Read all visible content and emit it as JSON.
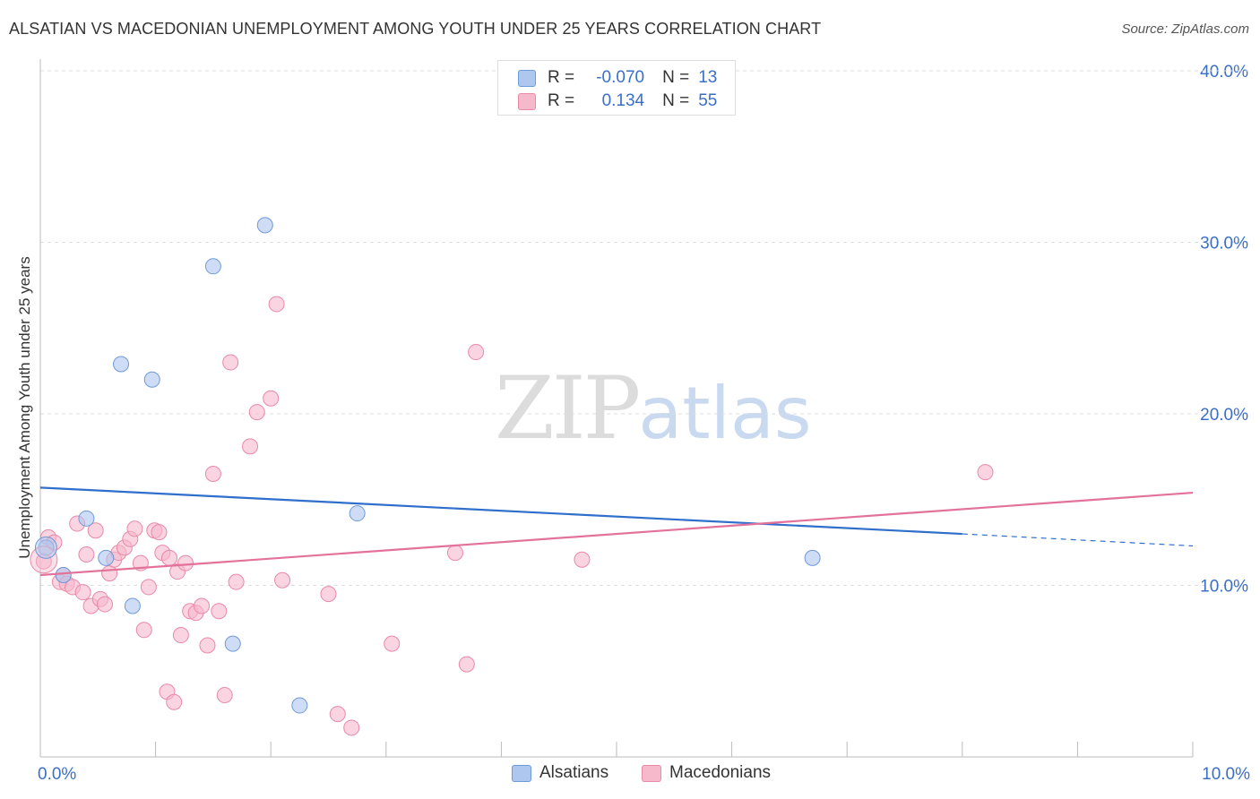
{
  "title": "ALSATIAN VS MACEDONIAN UNEMPLOYMENT AMONG YOUTH UNDER 25 YEARS CORRELATION CHART",
  "source": "Source: ZipAtlas.com",
  "watermark": {
    "zip": "ZIP",
    "atlas": "atlas"
  },
  "stat_legend": {
    "rows": [
      {
        "r_label": "R =",
        "r_value": "-0.070",
        "n_label": "N =",
        "n_value": "13",
        "color": "#aec7ef"
      },
      {
        "r_label": "R =",
        "r_value": "0.134",
        "n_label": "N =",
        "n_value": "55",
        "color": "#f6b8cb"
      }
    ]
  },
  "bottom_legend": [
    {
      "label": "Alsatians",
      "color": "#aec7ef"
    },
    {
      "label": "Macedonians",
      "color": "#f6b8cb"
    }
  ],
  "colors": {
    "alsatian_fill": "#aec7ef",
    "alsatian_stroke": "#6f9ad8",
    "alsatian_line": "#2f6fcb",
    "macedonian_fill": "#f6b8cb",
    "macedonian_stroke": "#e88aa8",
    "macedonian_line": "#e2729a",
    "tick_label": "#3a6fc9",
    "grid": "#dddddd"
  },
  "chart_data": {
    "type": "scatter",
    "title": "ALSATIAN VS MACEDONIAN UNEMPLOYMENT AMONG YOUTH UNDER 25 YEARS CORRELATION CHART",
    "xlabel": "",
    "ylabel": "Unemployment Among Youth under 25 years",
    "xlim": [
      0,
      10
    ],
    "ylim": [
      0,
      40
    ],
    "x_ticks": [
      0,
      10
    ],
    "x_tick_labels": [
      "0.0%",
      "10.0%"
    ],
    "y_ticks": [
      10,
      20,
      30,
      40
    ],
    "y_tick_labels": [
      "10.0%",
      "20.0%",
      "30.0%",
      "40.0%"
    ],
    "grid": true,
    "legend_position": "bottom-center",
    "series": [
      {
        "name": "Alsatians",
        "r": -0.07,
        "n": 13,
        "points": [
          [
            0.05,
            12.2
          ],
          [
            0.2,
            10.6
          ],
          [
            0.4,
            13.9
          ],
          [
            0.57,
            11.6
          ],
          [
            0.7,
            22.9
          ],
          [
            0.8,
            8.8
          ],
          [
            0.97,
            22.0
          ],
          [
            1.5,
            28.6
          ],
          [
            1.67,
            6.6
          ],
          [
            1.95,
            31.0
          ],
          [
            2.25,
            3.0
          ],
          [
            2.75,
            14.2
          ],
          [
            6.7,
            11.6
          ]
        ],
        "trend": {
          "x": [
            0.0,
            8.0
          ],
          "y": [
            15.7,
            13.0
          ]
        },
        "trend_dashed": {
          "x": [
            8.0,
            10.0
          ],
          "y": [
            13.0,
            12.3
          ]
        }
      },
      {
        "name": "Macedonians",
        "r": 0.134,
        "n": 55,
        "points": [
          [
            0.03,
            11.4
          ],
          [
            0.07,
            12.8
          ],
          [
            0.12,
            12.5
          ],
          [
            0.17,
            10.2
          ],
          [
            0.2,
            10.6
          ],
          [
            0.23,
            10.1
          ],
          [
            0.28,
            9.9
          ],
          [
            0.32,
            13.6
          ],
          [
            0.37,
            9.6
          ],
          [
            0.4,
            11.8
          ],
          [
            0.44,
            8.8
          ],
          [
            0.48,
            13.2
          ],
          [
            0.52,
            9.2
          ],
          [
            0.56,
            8.9
          ],
          [
            0.6,
            10.7
          ],
          [
            0.64,
            11.5
          ],
          [
            0.68,
            11.9
          ],
          [
            0.73,
            12.2
          ],
          [
            0.78,
            12.7
          ],
          [
            0.82,
            13.3
          ],
          [
            0.87,
            11.3
          ],
          [
            0.9,
            7.4
          ],
          [
            0.94,
            9.9
          ],
          [
            0.99,
            13.2
          ],
          [
            1.03,
            13.1
          ],
          [
            1.06,
            11.9
          ],
          [
            1.1,
            3.8
          ],
          [
            1.12,
            11.6
          ],
          [
            1.16,
            3.2
          ],
          [
            1.19,
            10.8
          ],
          [
            1.22,
            7.1
          ],
          [
            1.26,
            11.3
          ],
          [
            1.3,
            8.5
          ],
          [
            1.35,
            8.4
          ],
          [
            1.4,
            8.8
          ],
          [
            1.45,
            6.5
          ],
          [
            1.5,
            16.5
          ],
          [
            1.55,
            8.5
          ],
          [
            1.6,
            3.6
          ],
          [
            1.65,
            23.0
          ],
          [
            1.7,
            10.2
          ],
          [
            1.82,
            18.1
          ],
          [
            1.88,
            20.1
          ],
          [
            2.0,
            20.9
          ],
          [
            2.05,
            26.4
          ],
          [
            2.1,
            10.3
          ],
          [
            2.5,
            9.5
          ],
          [
            2.58,
            2.5
          ],
          [
            2.7,
            1.7
          ],
          [
            3.05,
            6.6
          ],
          [
            3.6,
            11.9
          ],
          [
            3.7,
            5.4
          ],
          [
            3.78,
            23.6
          ],
          [
            4.7,
            11.5
          ],
          [
            8.2,
            16.6
          ]
        ],
        "trend": {
          "x": [
            0.0,
            10.0
          ],
          "y": [
            10.6,
            15.4
          ]
        }
      }
    ]
  }
}
